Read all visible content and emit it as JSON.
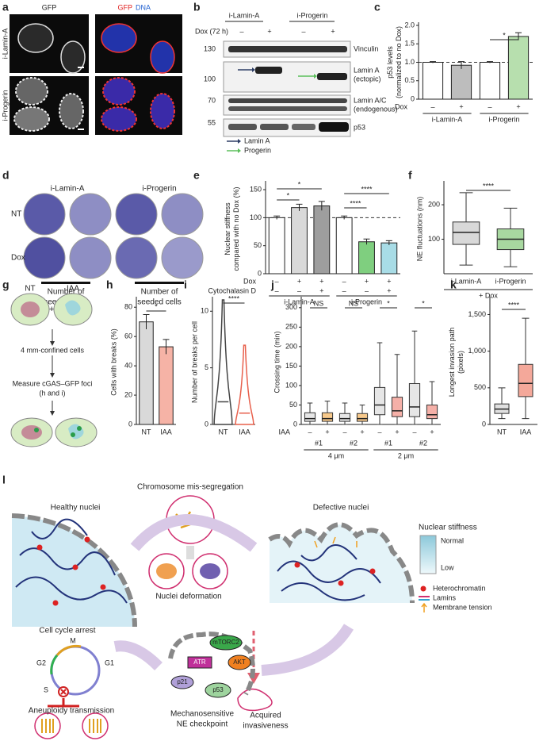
{
  "chart_data": [
    {
      "panel": "c",
      "type": "bar",
      "y_label": [
        "p53 levels",
        "(normalized to no Dox)"
      ],
      "x_label": "Dox",
      "categories": [
        "–",
        "+",
        "–",
        "+"
      ],
      "groups": [
        "i-Lamin-A",
        "i-Progerin"
      ],
      "values": [
        1.0,
        0.92,
        1.0,
        1.7
      ],
      "errors": [
        0.02,
        0.1,
        0.02,
        0.1
      ],
      "colors": [
        "#ffffff",
        "#bdbdbd",
        "#ffffff",
        "#b7dfae"
      ],
      "ylim": [
        0,
        2.0
      ],
      "yticks": [
        0,
        0.5,
        {
          "value": 1,
          "label": "1.0"
        },
        1.5,
        {
          "value": 2,
          "label": "2.0"
        }
      ],
      "reference_line": 1,
      "annotations": [
        "*"
      ]
    },
    {
      "panel": "e",
      "type": "bar",
      "y_label": [
        "Nuclear stiffness",
        "compared with no Dox (%)"
      ],
      "conditions": [
        {
          "name": "Dox",
          "values": [
            "–",
            "+",
            "+",
            "–",
            "+",
            "+"
          ]
        },
        {
          "name": "Cytochalasin D",
          "values": [
            "–",
            "–",
            "+",
            "–",
            "–",
            "+"
          ]
        }
      ],
      "groups": [
        "i-Lamin-A",
        "i-Progerin"
      ],
      "values": [
        100,
        118,
        121,
        100,
        57,
        55
      ],
      "errors": [
        3,
        6,
        8,
        3,
        5,
        4
      ],
      "colors": [
        "#ffffff",
        "#d9d9d9",
        "#9e9e9e",
        "#ffffff",
        "#7fcf7f",
        "#a8dce6"
      ],
      "ylim": [
        0,
        160
      ],
      "yticks": [
        0,
        50,
        100,
        150
      ],
      "reference_line": 100,
      "annotations": [
        "*",
        "*",
        "****",
        "****"
      ]
    },
    {
      "panel": "f",
      "type": "box",
      "y_label": [
        "NE fluctuations (nm)"
      ],
      "x_label": "+ Dox",
      "categories": [
        "i-Lamin-A",
        "i-Progerin"
      ],
      "boxes": [
        {
          "whisker_low": 25,
          "q1": 85,
          "median": 120,
          "q3": 150,
          "whisker_high": 235
        },
        {
          "whisker_low": 20,
          "q1": 70,
          "median": 100,
          "q3": 130,
          "whisker_high": 190
        }
      ],
      "colors": [
        "#d9d9d9",
        "#a8d8a0"
      ],
      "ylim": [
        0,
        260
      ],
      "yticks": [
        100,
        200
      ],
      "annotations": [
        "****"
      ]
    },
    {
      "panel": "h",
      "type": "bar",
      "y_label": [
        "Cells with breaks (%)"
      ],
      "categories": [
        "NT",
        "IAA"
      ],
      "values": [
        70,
        53
      ],
      "errors": [
        5,
        5
      ],
      "colors": [
        "#d9d9d9",
        "#f6b3a6"
      ],
      "ylim": [
        0,
        85
      ],
      "yticks": [
        0,
        20,
        40,
        60,
        80
      ],
      "annotations": [
        "*"
      ]
    },
    {
      "panel": "i",
      "type": "violin",
      "y_label": [
        "Number of breaks per cell"
      ],
      "categories": [
        "NT",
        "IAA"
      ],
      "medians": [
        2,
        1
      ],
      "maxima": [
        11,
        7
      ],
      "colors": [
        "#444444",
        "#e8604c"
      ],
      "ylim": [
        0,
        11
      ],
      "yticks": [
        0,
        5,
        10
      ],
      "annotations": [
        "****"
      ]
    },
    {
      "panel": "j",
      "type": "box",
      "y_label": [
        "Crossing time (min)"
      ],
      "x_label": "IAA",
      "categories": [
        "–",
        "+",
        "–",
        "+",
        "–",
        "+",
        "–",
        "+"
      ],
      "subgroups": [
        "#1",
        "#2",
        "#1",
        "#2"
      ],
      "groups": [
        "4 μm",
        "2 μm"
      ],
      "boxes": [
        {
          "whisker_low": 0,
          "q1": 8,
          "median": 15,
          "q3": 30,
          "whisker_high": 55
        },
        {
          "whisker_low": 0,
          "q1": 8,
          "median": 15,
          "q3": 30,
          "whisker_high": 60
        },
        {
          "whisker_low": 0,
          "q1": 8,
          "median": 15,
          "q3": 28,
          "whisker_high": 55
        },
        {
          "whisker_low": 0,
          "q1": 8,
          "median": 15,
          "q3": 28,
          "whisker_high": 50
        },
        {
          "whisker_low": 0,
          "q1": 25,
          "median": 50,
          "q3": 95,
          "whisker_high": 210
        },
        {
          "whisker_low": 0,
          "q1": 20,
          "median": 35,
          "q3": 70,
          "whisker_high": 180
        },
        {
          "whisker_low": 0,
          "q1": 20,
          "median": 45,
          "q3": 105,
          "whisker_high": 240
        },
        {
          "whisker_low": 0,
          "q1": 15,
          "median": 25,
          "q3": 50,
          "whisker_high": 110
        }
      ],
      "colors": [
        "#e6e6e6",
        "#f7c98b",
        "#e6e6e6",
        "#f7c98b",
        "#e6e6e6",
        "#f5b0a8",
        "#e6e6e6",
        "#f5b0a8"
      ],
      "ylim": [
        0,
        320
      ],
      "yticks": [
        0,
        50,
        100,
        150,
        200,
        250,
        300
      ],
      "annotations": [
        "NS",
        "NS",
        "*",
        "*"
      ]
    },
    {
      "panel": "k",
      "type": "box",
      "y_label": [
        "Longest invasion path",
        "(pixels)"
      ],
      "categories": [
        "NT",
        "IAA"
      ],
      "boxes": [
        {
          "whisker_low": 80,
          "q1": 150,
          "median": 210,
          "q3": 280,
          "whisker_high": 500
        },
        {
          "whisker_low": 80,
          "q1": 380,
          "median": 560,
          "q3": 820,
          "whisker_high": 1450
        }
      ],
      "colors": [
        "#e0e0e0",
        "#f4a89a"
      ],
      "ylim": [
        0,
        1700
      ],
      "yticks": [
        0,
        500,
        {
          "value": 1000,
          "label": "1,000"
        },
        {
          "value": 1500,
          "label": "1,500"
        }
      ],
      "annotations": [
        "****"
      ]
    }
  ],
  "figure": {
    "a": {
      "panel": "a",
      "channel": "GFP",
      "merge": [
        "GFP",
        "DNA"
      ],
      "rows": [
        "i-Lamin-A",
        "i-Progerin"
      ]
    },
    "b": {
      "panel": "b",
      "lines": [
        "i-Lamin-A",
        "i-Progerin"
      ],
      "treatment": "Dox (72 h)",
      "signs": [
        "–",
        "+",
        "–",
        "+"
      ],
      "markers": [
        "130",
        "100",
        "70",
        "55"
      ],
      "bands": [
        [
          "Vinculin"
        ],
        [
          "Lamin A",
          "(ectopic)"
        ],
        [
          "Lamin A/C",
          "(endogenous)"
        ],
        [
          "p53"
        ]
      ],
      "legend": [
        "Lamin A",
        "Progerin"
      ]
    },
    "d": {
      "panel": "d",
      "lines": [
        "i-Lamin-A",
        "i-Progerin"
      ],
      "rows": [
        "NT",
        "Dox"
      ],
      "axis": [
        [
          "Number of",
          "seeded cells"
        ],
        [
          "Number of",
          "seeded cells"
        ]
      ]
    },
    "g": {
      "panel": "g",
      "conditions": [
        "NT",
        "IAA"
      ],
      "steps": [
        "4 mm-confined cells",
        "Measure cGAS–GFP foci",
        "(h and i)"
      ]
    },
    "l": {
      "panel": "l",
      "healthy": "Healthy nuclei",
      "missegregation": "Chromosome mis-segregation",
      "defective": "Defective nuclei",
      "deformation": "Nuclei deformation",
      "legend_title": "Nuclear stiffness",
      "normal": "Normal",
      "low": "Low",
      "heterochromatin": "Heterochromatin",
      "lamins": "Lamins",
      "tension": "Membrane tension",
      "arrest": "Cell cycle arrest",
      "phases": [
        "M",
        "G2",
        "G1",
        "S"
      ],
      "aneuploidy": "Aneuploidy transmission",
      "proteins": [
        "mTORC2",
        "ATR",
        "AKT",
        "p21",
        "p53"
      ],
      "checkpoint": [
        "Mechanosensitive",
        "NE checkpoint"
      ],
      "invasiveness": [
        "Acquired",
        "invasiveness"
      ]
    }
  }
}
